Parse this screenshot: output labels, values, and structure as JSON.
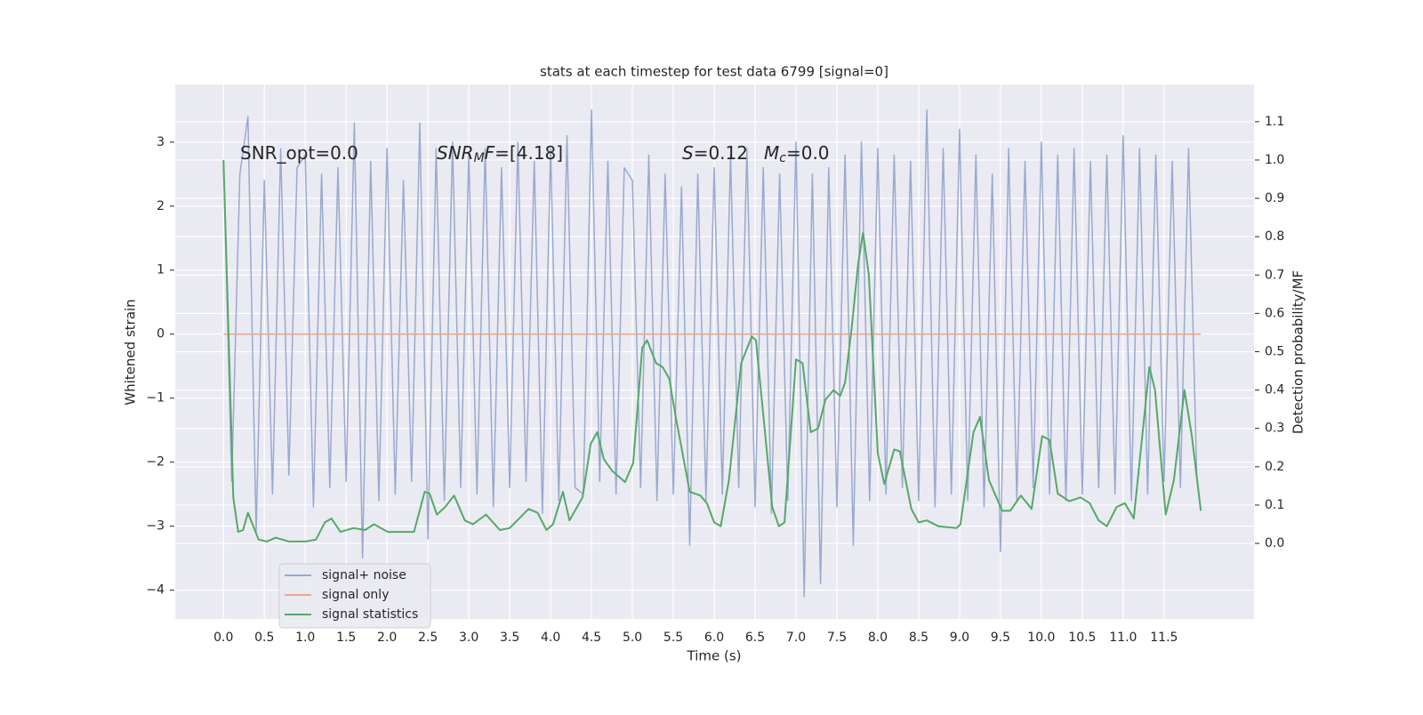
{
  "chart_data": {
    "type": "line",
    "title": "stats at each timestep for test data 6799 [signal=0]",
    "x_label": "Time (s)",
    "y_label": "Whitened strain",
    "y2_label": "Detection probability/MF",
    "grid": true,
    "legend": "lower left",
    "xlim": [
      -0.59,
      12.6
    ],
    "ylim": [
      -4.45,
      3.9
    ],
    "y2lim": [
      -0.197,
      1.197
    ],
    "xticks": [
      {
        "value": 0,
        "label": "0.0"
      },
      0.5,
      {
        "value": 1,
        "label": "1.0"
      },
      1.5,
      {
        "value": 2,
        "label": "2.0"
      },
      2.5,
      {
        "value": 3,
        "label": "3.0"
      },
      3.5,
      {
        "value": 4,
        "label": "4.0"
      },
      4.5,
      {
        "value": 5,
        "label": "5.0"
      },
      5.5,
      {
        "value": 6,
        "label": "6.0"
      },
      6.5,
      {
        "value": 7,
        "label": "7.0"
      },
      7.5,
      {
        "value": 8,
        "label": "8.0"
      },
      8.5,
      {
        "value": 9,
        "label": "9.0"
      },
      9.5,
      {
        "value": 10,
        "label": "10.0"
      },
      10.5,
      {
        "value": 11,
        "label": "11.0"
      },
      11.5
    ],
    "yticks": [
      {
        "value": -4,
        "label": "−4"
      },
      {
        "value": -3,
        "label": "−3"
      },
      {
        "value": -2,
        "label": "−2"
      },
      {
        "value": -1,
        "label": "−1"
      },
      0,
      1,
      2,
      3
    ],
    "y2ticks": [
      {
        "value": 0,
        "label": "0.0"
      },
      0.1,
      0.2,
      0.3,
      0.4,
      0.5,
      0.6,
      0.7,
      0.8,
      0.9,
      {
        "value": 1,
        "label": "1.0"
      },
      1.1
    ],
    "annotations": [
      [
        {
          "text": "SNR_opt=0.0"
        }
      ],
      [
        {
          "text": "SNR",
          "italic": true
        },
        {
          "text": "M",
          "italic": true,
          "sub": true
        },
        {
          "text": "F",
          "italic": true
        },
        {
          "text": "=[4.18]"
        }
      ],
      [
        {
          "text": "S",
          "italic": true
        },
        {
          "text": "=0.12"
        }
      ],
      [
        {
          "text": "M",
          "italic": true
        },
        {
          "text": "c",
          "italic": true,
          "sub": true
        },
        {
          "text": "=0.0"
        }
      ]
    ],
    "series": [
      {
        "name": "signal+ noise",
        "color": "#99a9cf",
        "x": [
          0,
          0.1,
          0.2,
          0.3,
          0.4,
          0.5,
          0.6,
          0.7,
          0.8,
          0.9,
          1,
          1.1,
          1.2,
          1.3,
          1.4,
          1.5,
          1.6,
          1.7,
          1.8,
          1.9,
          2,
          2.1,
          2.2,
          2.3,
          2.4,
          2.5,
          2.6,
          2.7,
          2.8,
          2.9,
          3,
          3.1,
          3.2,
          3.3,
          3.4,
          3.5,
          3.6,
          3.7,
          3.8,
          3.9,
          4,
          4.1,
          4.2,
          4.3,
          4.4,
          4.5,
          4.6,
          4.7,
          4.8,
          4.9,
          5,
          5.1,
          5.2,
          5.3,
          5.4,
          5.5,
          5.6,
          5.7,
          5.8,
          5.9,
          6,
          6.1,
          6.2,
          6.3,
          6.4,
          6.5,
          6.6,
          6.7,
          6.8,
          6.9,
          7,
          7.1,
          7.2,
          7.3,
          7.4,
          7.5,
          7.6,
          7.7,
          7.8,
          7.9,
          8,
          8.1,
          8.2,
          8.3,
          8.4,
          8.5,
          8.6,
          8.7,
          8.8,
          8.9,
          9,
          9.1,
          9.2,
          9.3,
          9.4,
          9.5,
          9.6,
          9.7,
          9.8,
          9.9,
          10,
          10.1,
          10.2,
          10.3,
          10.4,
          10.5,
          10.6,
          10.7,
          10.8,
          10.9,
          11,
          11.1,
          11.2,
          11.3,
          11.4,
          11.5,
          11.6,
          11.7,
          11.8,
          11.9
        ],
        "values": [
          2.7,
          -2.3,
          2.5,
          3.4,
          -3.1,
          2.4,
          -2.5,
          2.9,
          -2.2,
          2.6,
          2.8,
          -2.7,
          2.5,
          -2.4,
          2.6,
          -2.3,
          3.3,
          -3.5,
          2.7,
          -2.6,
          2.9,
          -2.5,
          2.4,
          -2.3,
          3.3,
          -3.2,
          2.9,
          -2.6,
          3.0,
          -2.4,
          2.8,
          -2.5,
          2.9,
          -2.7,
          2.6,
          -2.4,
          3.0,
          -2.3,
          2.7,
          -2.8,
          2.9,
          -2.6,
          3.1,
          -2.4,
          -2.5,
          3.5,
          -2.3,
          2.7,
          -2.5,
          2.6,
          2.4,
          -2.4,
          2.8,
          -2.6,
          2.5,
          -2.5,
          2.3,
          -3.3,
          2.5,
          -2.6,
          2.6,
          -2.5,
          2.8,
          -2.4,
          2.9,
          -2.7,
          2.6,
          -2.8,
          2.5,
          -2.6,
          3.0,
          -4.1,
          2.5,
          -3.9,
          2.6,
          -2.7,
          2.8,
          -3.3,
          3.0,
          -2.6,
          2.9,
          -2.5,
          2.8,
          -2.4,
          2.7,
          -2.6,
          3.5,
          -2.7,
          2.9,
          -2.5,
          3.2,
          -2.6,
          2.8,
          -2.7,
          2.5,
          -3.4,
          2.9,
          -2.6,
          2.7,
          -2.4,
          3.0,
          -2.5,
          2.8,
          -2.6,
          2.9,
          -2.5,
          2.7,
          -2.4,
          2.8,
          -2.5,
          3.1,
          -2.6,
          2.9,
          -2.5,
          2.8,
          -2.3,
          2.7,
          -2.4,
          2.9,
          -2.2
        ]
      },
      {
        "name": "signal only",
        "color": "#e8a888",
        "x": [
          0,
          11.95
        ],
        "values": [
          0,
          0
        ]
      },
      {
        "name": "signal statistics",
        "color": "#55a868",
        "axis": "y2",
        "x": [
          0,
          0.12,
          0.18,
          0.24,
          0.3,
          0.43,
          0.53,
          0.64,
          0.8,
          1.0,
          1.13,
          1.24,
          1.32,
          1.43,
          1.59,
          1.73,
          1.84,
          2.01,
          2.18,
          2.33,
          2.46,
          2.52,
          2.61,
          2.71,
          2.82,
          2.95,
          3.05,
          3.21,
          3.38,
          3.5,
          3.73,
          3.84,
          3.95,
          4.03,
          4.15,
          4.23,
          4.39,
          4.49,
          4.57,
          4.65,
          4.75,
          4.91,
          5.01,
          5.12,
          5.18,
          5.29,
          5.37,
          5.45,
          5.53,
          5.7,
          5.83,
          5.91,
          6.0,
          6.08,
          6.18,
          6.33,
          6.46,
          6.51,
          6.57,
          6.71,
          6.79,
          6.86,
          7.0,
          7.08,
          7.18,
          7.27,
          7.36,
          7.46,
          7.54,
          7.6,
          7.68,
          7.76,
          7.82,
          7.89,
          8.0,
          8.08,
          8.2,
          8.27,
          8.41,
          8.5,
          8.6,
          8.74,
          8.96,
          9.01,
          9.17,
          9.25,
          9.36,
          9.52,
          9.62,
          9.75,
          9.88,
          10.01,
          10.1,
          10.2,
          10.34,
          10.48,
          10.59,
          10.7,
          10.8,
          10.92,
          11.02,
          11.13,
          11.32,
          11.39,
          11.52,
          11.62,
          11.75,
          11.84,
          11.95
        ],
        "values": [
          1.0,
          0.12,
          0.03,
          0.035,
          0.08,
          0.01,
          0.005,
          0.015,
          0.005,
          0.005,
          0.01,
          0.055,
          0.065,
          0.03,
          0.04,
          0.035,
          0.05,
          0.03,
          0.03,
          0.03,
          0.135,
          0.13,
          0.075,
          0.095,
          0.125,
          0.06,
          0.05,
          0.075,
          0.035,
          0.04,
          0.09,
          0.08,
          0.035,
          0.05,
          0.135,
          0.06,
          0.12,
          0.26,
          0.29,
          0.22,
          0.19,
          0.16,
          0.21,
          0.51,
          0.53,
          0.47,
          0.46,
          0.43,
          0.33,
          0.135,
          0.125,
          0.105,
          0.055,
          0.045,
          0.165,
          0.47,
          0.54,
          0.53,
          0.4,
          0.095,
          0.045,
          0.055,
          0.48,
          0.47,
          0.29,
          0.3,
          0.375,
          0.4,
          0.385,
          0.42,
          0.56,
          0.73,
          0.81,
          0.7,
          0.235,
          0.155,
          0.245,
          0.24,
          0.09,
          0.055,
          0.06,
          0.045,
          0.04,
          0.05,
          0.29,
          0.33,
          0.165,
          0.085,
          0.085,
          0.125,
          0.09,
          0.28,
          0.27,
          0.13,
          0.11,
          0.12,
          0.105,
          0.06,
          0.045,
          0.095,
          0.105,
          0.065,
          0.46,
          0.4,
          0.075,
          0.165,
          0.4,
          0.28,
          0.085
        ]
      }
    ]
  }
}
